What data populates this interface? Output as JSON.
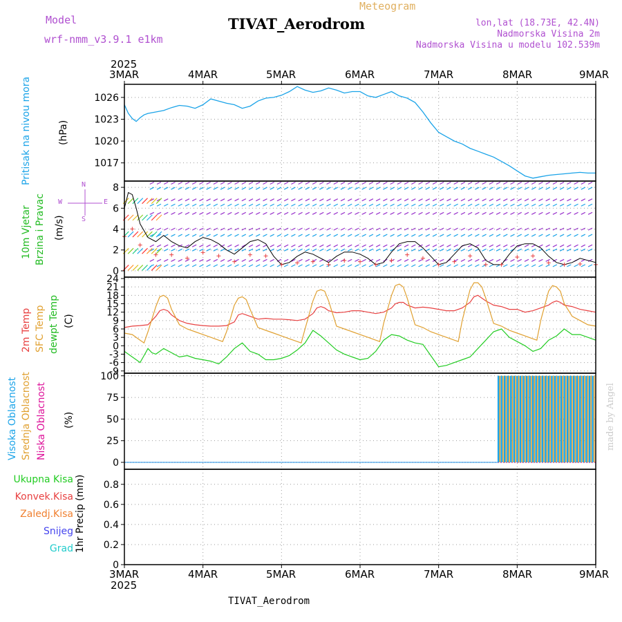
{
  "header": {
    "model_label": "Model",
    "model_name": "wrf-nmm_v3.9.1  e1km",
    "meteogram_label": "Meteogram",
    "station_title": "TIVAT_Aerodrom",
    "lonlat": "lon,lat (18.73E, 42.4N)",
    "altitude": "Nadmorska Visina 2m",
    "model_altitude": "Nadmorska Visina u modelu 102.539m",
    "footer_station": "TIVAT_Aerodrom",
    "credit": "made by Angel"
  },
  "colors": {
    "pressure": "#1aa3e8",
    "wind_speed_label": "#22bb22",
    "wind_dir_label": "#22bb22",
    "temp2m": "#e84040",
    "sfc_temp": "#e0a030",
    "dewpoint": "#22cc22",
    "high_cloud": "#1aa3e8",
    "mid_cloud": "#e0a030",
    "low_cloud": "#dd1199",
    "total_precip": "#22cc22",
    "conv_precip": "#e84040",
    "frozen_precip": "#f08030",
    "snow": "#4444ee",
    "hail": "#22cccc",
    "model_text": "#b050d0"
  },
  "time_axis": {
    "year": "2025",
    "ticks": [
      "3MAR",
      "4MAR",
      "5MAR",
      "6MAR",
      "7MAR",
      "8MAR",
      "9MAR"
    ]
  },
  "panels": {
    "pressure": {
      "label": "Pritisak na nivou mora",
      "unit": "(hPa)"
    },
    "wind": {
      "label1": "10m Vjetar",
      "label2": "Brzina i Pravac",
      "unit": "(m/s)",
      "compass_n": "N",
      "compass_s": "S",
      "compass_w": "W",
      "compass_e": "E"
    },
    "temp": {
      "label1": "2m Temp",
      "label2": "SFC Temp",
      "label3": "dewpt Temp",
      "unit": "(C)"
    },
    "cloud": {
      "label1": "Visoka Oblacnost",
      "label2": "Srednja Oblacnost",
      "label3": "Niska Oblacnost",
      "unit": "(%)"
    },
    "precip": {
      "legend": [
        "Ukupna Kisa",
        "Konvek.Kisa",
        "Zaledj.Kisa",
        "Snijeg",
        "Grad"
      ],
      "unit": "1hr Precip (mm)"
    }
  },
  "chart_data": [
    {
      "type": "line",
      "title": "",
      "ylabel": "(hPa)",
      "ylim": [
        1014.5,
        1027.8
      ],
      "yticks": [
        1017,
        1020,
        1023,
        1026
      ],
      "xlim": [
        0,
        6
      ],
      "grid": true,
      "series": [
        {
          "name": "Pritisak na nivou mora",
          "x": [
            0,
            0.05,
            0.1,
            0.15,
            0.2,
            0.25,
            0.3,
            0.4,
            0.5,
            0.6,
            0.7,
            0.8,
            0.9,
            1.0,
            1.1,
            1.2,
            1.3,
            1.4,
            1.5,
            1.6,
            1.7,
            1.8,
            1.9,
            2.0,
            2.1,
            2.2,
            2.3,
            2.4,
            2.5,
            2.6,
            2.7,
            2.8,
            2.9,
            3.0,
            3.1,
            3.2,
            3.3,
            3.4,
            3.5,
            3.6,
            3.7,
            3.8,
            3.9,
            4.0,
            4.1,
            4.2,
            4.3,
            4.4,
            4.5,
            4.6,
            4.7,
            4.8,
            4.9,
            5.0,
            5.1,
            5.2,
            5.3,
            5.4,
            5.5,
            5.6,
            5.7,
            5.8,
            5.9,
            6.0
          ],
          "values": [
            1025.0,
            1023.8,
            1023.1,
            1022.7,
            1023.2,
            1023.6,
            1023.8,
            1024.0,
            1024.2,
            1024.6,
            1024.9,
            1024.8,
            1024.5,
            1025.0,
            1025.8,
            1025.5,
            1025.2,
            1025.0,
            1024.5,
            1024.8,
            1025.5,
            1025.9,
            1026.0,
            1026.3,
            1026.8,
            1027.5,
            1027.0,
            1026.7,
            1026.9,
            1027.3,
            1027.0,
            1026.6,
            1026.8,
            1026.8,
            1026.2,
            1026.0,
            1026.4,
            1026.8,
            1026.2,
            1025.9,
            1025.3,
            1024.0,
            1022.5,
            1021.2,
            1020.6,
            1020.0,
            1019.6,
            1019.0,
            1018.6,
            1018.2,
            1017.8,
            1017.2,
            1016.6,
            1015.9,
            1015.2,
            1014.9,
            1015.1,
            1015.3,
            1015.4,
            1015.5,
            1015.6,
            1015.7,
            1015.6,
            1015.6
          ]
        }
      ]
    },
    {
      "type": "line",
      "title": "",
      "ylabel": "(m/s)",
      "ylim": [
        -0.6,
        8.6
      ],
      "yticks": [
        0,
        2,
        4,
        6,
        8
      ],
      "xlim": [
        0,
        6
      ],
      "grid": true,
      "series": [
        {
          "name": "10m Vjetar",
          "x": [
            0,
            0.05,
            0.1,
            0.15,
            0.2,
            0.3,
            0.4,
            0.5,
            0.6,
            0.7,
            0.8,
            0.9,
            1.0,
            1.1,
            1.2,
            1.3,
            1.4,
            1.5,
            1.6,
            1.7,
            1.8,
            1.9,
            2.0,
            2.1,
            2.2,
            2.3,
            2.4,
            2.5,
            2.6,
            2.7,
            2.8,
            2.9,
            3.0,
            3.1,
            3.2,
            3.3,
            3.4,
            3.5,
            3.6,
            3.7,
            3.8,
            3.9,
            4.0,
            4.1,
            4.2,
            4.3,
            4.4,
            4.5,
            4.6,
            4.7,
            4.8,
            4.9,
            5.0,
            5.1,
            5.2,
            5.3,
            5.4,
            5.5,
            5.6,
            5.7,
            5.8,
            5.9,
            6.0
          ],
          "values": [
            6.0,
            7.5,
            7.3,
            6.0,
            4.5,
            3.2,
            2.8,
            3.4,
            2.8,
            2.4,
            2.2,
            2.8,
            3.2,
            3.0,
            2.6,
            2.0,
            1.6,
            2.2,
            2.8,
            3.0,
            2.6,
            1.4,
            0.6,
            0.8,
            1.4,
            1.8,
            1.6,
            1.2,
            0.8,
            1.4,
            1.8,
            1.8,
            1.6,
            1.2,
            0.6,
            0.8,
            1.8,
            2.6,
            2.8,
            2.8,
            2.2,
            1.4,
            0.6,
            0.8,
            1.6,
            2.4,
            2.6,
            2.2,
            1.0,
            0.6,
            0.6,
            1.6,
            2.4,
            2.6,
            2.6,
            2.2,
            1.4,
            0.8,
            0.6,
            0.8,
            1.2,
            1.0,
            0.8
          ]
        }
      ]
    },
    {
      "type": "line",
      "title": "",
      "ylabel": "(C)",
      "ylim": [
        -9.8,
        24.5
      ],
      "yticks": [
        -9,
        -6,
        -3,
        0,
        3,
        6,
        9,
        12,
        15,
        18,
        21,
        24
      ],
      "xlim": [
        0,
        6
      ],
      "grid": true,
      "series": [
        {
          "name": "2m Temp",
          "x": [
            0,
            0.1,
            0.2,
            0.3,
            0.4,
            0.45,
            0.5,
            0.55,
            0.6,
            0.7,
            0.8,
            0.9,
            1.0,
            1.1,
            1.2,
            1.3,
            1.4,
            1.45,
            1.5,
            1.55,
            1.6,
            1.7,
            1.8,
            1.9,
            2.0,
            2.1,
            2.2,
            2.3,
            2.4,
            2.45,
            2.5,
            2.55,
            2.6,
            2.7,
            2.8,
            2.9,
            3.0,
            3.1,
            3.2,
            3.3,
            3.4,
            3.45,
            3.5,
            3.55,
            3.6,
            3.7,
            3.8,
            3.9,
            4.0,
            4.1,
            4.2,
            4.3,
            4.4,
            4.45,
            4.5,
            4.55,
            4.6,
            4.7,
            4.8,
            4.9,
            5.0,
            5.1,
            5.2,
            5.3,
            5.4,
            5.45,
            5.5,
            5.55,
            5.6,
            5.7,
            5.8,
            5.9,
            6.0
          ],
          "values": [
            6.5,
            7.0,
            7.2,
            7.5,
            10.5,
            12.5,
            13.0,
            12.5,
            11.0,
            9.0,
            8.0,
            7.5,
            7.2,
            7.0,
            7.0,
            7.2,
            8.5,
            11.0,
            11.5,
            11.0,
            10.5,
            9.5,
            9.8,
            9.5,
            9.5,
            9.3,
            9.0,
            9.5,
            11.5,
            13.5,
            14.0,
            13.5,
            12.5,
            11.8,
            12.0,
            12.5,
            12.5,
            12.0,
            11.5,
            12.0,
            13.5,
            15.0,
            15.5,
            15.5,
            14.5,
            13.5,
            13.8,
            13.5,
            13.0,
            12.5,
            12.5,
            13.5,
            15.5,
            17.5,
            18.0,
            17.0,
            16.0,
            14.5,
            14.0,
            13.0,
            13.0,
            12.0,
            12.5,
            13.5,
            14.5,
            15.5,
            16.0,
            15.5,
            14.5,
            14.0,
            13.0,
            12.5,
            12.0
          ]
        },
        {
          "name": "SFC Temp",
          "x": [
            0,
            0.1,
            0.2,
            0.25,
            0.3,
            0.4,
            0.45,
            0.5,
            0.55,
            0.6,
            0.7,
            0.8,
            0.9,
            1.0,
            1.1,
            1.2,
            1.25,
            1.3,
            1.4,
            1.45,
            1.5,
            1.55,
            1.6,
            1.7,
            1.8,
            1.9,
            2.0,
            2.1,
            2.2,
            2.25,
            2.3,
            2.4,
            2.45,
            2.5,
            2.55,
            2.6,
            2.7,
            2.8,
            2.9,
            3.0,
            3.1,
            3.2,
            3.25,
            3.3,
            3.4,
            3.45,
            3.5,
            3.55,
            3.6,
            3.7,
            3.8,
            3.9,
            4.0,
            4.1,
            4.2,
            4.25,
            4.3,
            4.4,
            4.45,
            4.5,
            4.55,
            4.6,
            4.7,
            4.8,
            4.9,
            5.0,
            5.1,
            5.2,
            5.25,
            5.3,
            5.4,
            5.45,
            5.5,
            5.55,
            5.6,
            5.7,
            5.8,
            5.9,
            6.0
          ],
          "values": [
            4.5,
            4.0,
            2.0,
            1.0,
            5.0,
            14.0,
            17.5,
            18.0,
            17.0,
            13.0,
            7.5,
            6.0,
            5.0,
            4.0,
            3.0,
            2.0,
            1.5,
            5.0,
            14.5,
            17.0,
            17.5,
            16.5,
            13.0,
            6.5,
            5.5,
            4.5,
            3.5,
            2.5,
            1.5,
            1.0,
            6.0,
            16.0,
            19.5,
            20.0,
            19.5,
            16.0,
            7.0,
            6.0,
            5.0,
            4.0,
            3.0,
            2.0,
            1.5,
            8.0,
            18.0,
            21.5,
            22.0,
            21.0,
            17.0,
            7.5,
            6.5,
            5.0,
            4.0,
            3.0,
            2.0,
            1.5,
            9.0,
            20.0,
            22.5,
            22.5,
            21.0,
            17.0,
            8.0,
            7.0,
            5.5,
            4.5,
            3.5,
            2.5,
            2.0,
            9.0,
            19.5,
            21.5,
            21.0,
            19.5,
            15.0,
            10.5,
            9.0,
            7.5,
            7.0
          ]
        },
        {
          "name": "dewpt Temp",
          "x": [
            0,
            0.1,
            0.15,
            0.2,
            0.25,
            0.3,
            0.35,
            0.4,
            0.5,
            0.6,
            0.7,
            0.8,
            0.9,
            1.0,
            1.1,
            1.2,
            1.3,
            1.4,
            1.5,
            1.6,
            1.7,
            1.8,
            1.9,
            2.0,
            2.1,
            2.2,
            2.3,
            2.4,
            2.5,
            2.6,
            2.7,
            2.8,
            2.9,
            3.0,
            3.1,
            3.2,
            3.3,
            3.4,
            3.5,
            3.6,
            3.7,
            3.8,
            3.9,
            4.0,
            4.1,
            4.2,
            4.3,
            4.4,
            4.5,
            4.6,
            4.7,
            4.8,
            4.9,
            5.0,
            5.1,
            5.2,
            5.3,
            5.4,
            5.5,
            5.6,
            5.7,
            5.8,
            5.9,
            6.0
          ],
          "values": [
            -2.0,
            -4.0,
            -5.0,
            -6.0,
            -3.5,
            -1.0,
            -2.5,
            -3.0,
            -1.0,
            -2.5,
            -4.0,
            -3.5,
            -4.5,
            -5.0,
            -5.5,
            -6.5,
            -4.0,
            -1.0,
            1.0,
            -2.0,
            -3.0,
            -5.0,
            -5.0,
            -4.5,
            -3.5,
            -1.5,
            1.0,
            5.5,
            3.5,
            1.0,
            -1.5,
            -3.0,
            -4.0,
            -5.0,
            -4.5,
            -2.0,
            2.0,
            4.0,
            3.5,
            2.0,
            1.0,
            0.5,
            -3.5,
            -7.5,
            -7.0,
            -6.0,
            -5.0,
            -4.0,
            -1.0,
            2.0,
            5.0,
            6.0,
            3.0,
            1.5,
            0.0,
            -2.0,
            -1.0,
            2.0,
            3.5,
            6.0,
            4.0,
            4.0,
            3.0,
            2.0
          ]
        }
      ]
    },
    {
      "type": "bar",
      "title": "",
      "ylabel": "(%)",
      "ylim": [
        -8,
        103
      ],
      "yticks": [
        0,
        25,
        50,
        75,
        100
      ],
      "xlim": [
        0,
        6
      ],
      "grid": true,
      "series": [
        {
          "name": "Visoka Oblacnost",
          "start_x": 4.75,
          "value_after_start": 100
        },
        {
          "name": "Srednja Oblacnost",
          "start_x": 4.75,
          "value_after_start": 100
        },
        {
          "name": "Niska Oblacnost",
          "start_x": 0.0,
          "value_after_start": 0
        }
      ]
    },
    {
      "type": "line",
      "title": "",
      "ylabel": "1hr Precip (mm)",
      "ylim": [
        0,
        0.95
      ],
      "yticks": [
        0,
        0.2,
        0.4,
        0.6,
        0.8
      ],
      "xlim": [
        0,
        6
      ],
      "grid": true,
      "series": [
        {
          "name": "Ukupna Kisa",
          "values": [
            0
          ]
        },
        {
          "name": "Konvek.Kisa",
          "values": [
            0
          ]
        },
        {
          "name": "Zaledj.Kisa",
          "values": [
            0
          ]
        },
        {
          "name": "Snijeg",
          "values": [
            0
          ]
        },
        {
          "name": "Grad",
          "values": [
            0
          ]
        }
      ]
    }
  ]
}
